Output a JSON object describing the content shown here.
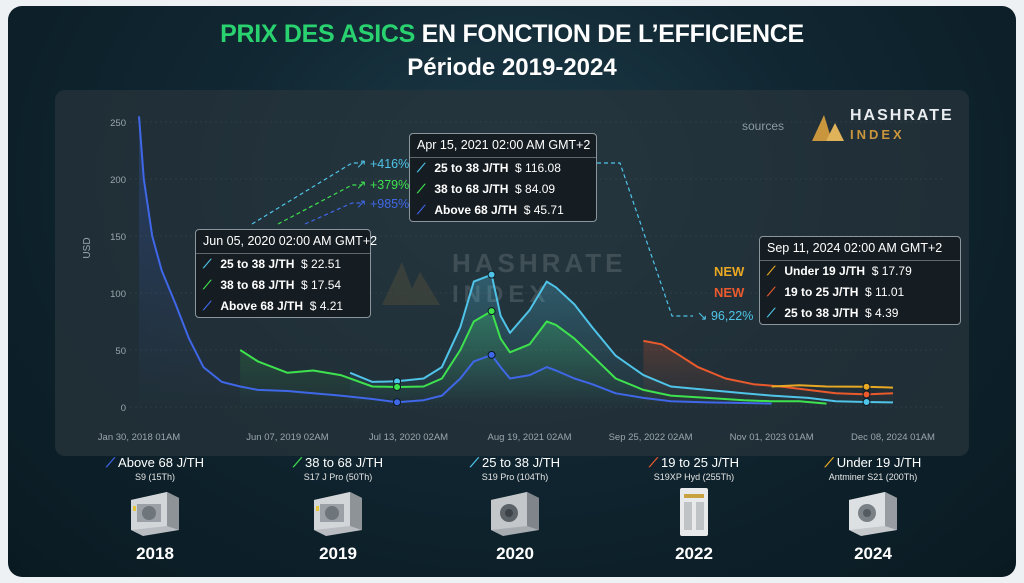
{
  "header": {
    "title_highlight": "PRIX DES ASICS",
    "title_rest": " EN FONCTION DE L’EFFICIENCE",
    "subtitle": "Période 2019-2024"
  },
  "brand": {
    "sources_label": "sources",
    "name_line1": "HASHRATE",
    "name_line2": "INDEX"
  },
  "colors": {
    "above68": "#3f67e8",
    "r38_68": "#3ee24e",
    "r25_38": "#4fc4e8",
    "r19_25": "#ea5a2d",
    "under19": "#e8a823",
    "highlight": "#29d26f"
  },
  "chart_data": {
    "type": "line",
    "ylabel": "USD",
    "ylim": [
      0,
      250
    ],
    "yticks": [
      "0",
      "50",
      "100",
      "150",
      "200",
      "250"
    ],
    "xtick_labels": [
      "Jan 30, 2018 01AM",
      "Jun 07, 2019 02AM",
      "Jul 13, 2020 02AM",
      "Aug 19, 2021 02AM",
      "Sep 25, 2022 02AM",
      "Nov 01, 2023 01AM",
      "Dec 08, 2024 01AM"
    ],
    "xtick_dates": [
      "2018-01-30",
      "2019-06-07",
      "2020-07-13",
      "2021-08-19",
      "2022-09-25",
      "2023-11-01",
      "2024-12-08"
    ],
    "series": [
      {
        "name": "Above 68 J/TH",
        "key": "above68",
        "points": [
          [
            "2018-01-30",
            255
          ],
          [
            "2018-02-15",
            200
          ],
          [
            "2018-03-15",
            150
          ],
          [
            "2018-04-15",
            120
          ],
          [
            "2018-06-01",
            90
          ],
          [
            "2018-07-15",
            60
          ],
          [
            "2018-09-01",
            35
          ],
          [
            "2018-11-01",
            22
          ],
          [
            "2019-01-01",
            18
          ],
          [
            "2019-03-01",
            15
          ],
          [
            "2019-06-07",
            14
          ],
          [
            "2019-09-01",
            12
          ],
          [
            "2019-12-01",
            10
          ],
          [
            "2020-03-15",
            7
          ],
          [
            "2020-06-05",
            4.21
          ],
          [
            "2020-09-01",
            6
          ],
          [
            "2020-11-01",
            10
          ],
          [
            "2021-01-01",
            25
          ],
          [
            "2021-02-15",
            40
          ],
          [
            "2021-04-15",
            45.71
          ],
          [
            "2021-05-15",
            35
          ],
          [
            "2021-06-15",
            25
          ],
          [
            "2021-08-19",
            28
          ],
          [
            "2021-10-15",
            35
          ],
          [
            "2021-11-15",
            32
          ],
          [
            "2022-01-15",
            25
          ],
          [
            "2022-03-15",
            20
          ],
          [
            "2022-06-01",
            12
          ],
          [
            "2022-09-01",
            8
          ],
          [
            "2022-12-01",
            5
          ],
          [
            "2023-04-01",
            4
          ],
          [
            "2023-08-01",
            3.5
          ],
          [
            "2023-11-01",
            3
          ]
        ]
      },
      {
        "name": "38 to 68 J/TH",
        "key": "r38_68",
        "points": [
          [
            "2019-01-01",
            50
          ],
          [
            "2019-03-01",
            40
          ],
          [
            "2019-06-07",
            30
          ],
          [
            "2019-09-01",
            32
          ],
          [
            "2019-12-01",
            28
          ],
          [
            "2020-03-15",
            18
          ],
          [
            "2020-06-05",
            17.54
          ],
          [
            "2020-09-01",
            18
          ],
          [
            "2020-11-01",
            25
          ],
          [
            "2021-01-01",
            50
          ],
          [
            "2021-02-15",
            75
          ],
          [
            "2021-04-15",
            84.09
          ],
          [
            "2021-05-15",
            60
          ],
          [
            "2021-06-15",
            48
          ],
          [
            "2021-08-19",
            55
          ],
          [
            "2021-10-15",
            75
          ],
          [
            "2021-11-15",
            72
          ],
          [
            "2022-01-15",
            60
          ],
          [
            "2022-03-15",
            45
          ],
          [
            "2022-06-01",
            25
          ],
          [
            "2022-09-01",
            15
          ],
          [
            "2022-12-01",
            10
          ],
          [
            "2023-04-01",
            8
          ],
          [
            "2023-08-01",
            6
          ],
          [
            "2023-11-01",
            5
          ],
          [
            "2024-02-01",
            5
          ],
          [
            "2024-05-01",
            3
          ]
        ]
      },
      {
        "name": "25 to 38 J/TH",
        "key": "r25_38",
        "points": [
          [
            "2020-01-01",
            30
          ],
          [
            "2020-03-15",
            22
          ],
          [
            "2020-06-05",
            22.51
          ],
          [
            "2020-09-01",
            25
          ],
          [
            "2020-11-01",
            35
          ],
          [
            "2021-01-01",
            70
          ],
          [
            "2021-02-15",
            110
          ],
          [
            "2021-04-15",
            116.08
          ],
          [
            "2021-05-15",
            80
          ],
          [
            "2021-06-15",
            65
          ],
          [
            "2021-08-19",
            85
          ],
          [
            "2021-10-15",
            110
          ],
          [
            "2021-11-15",
            105
          ],
          [
            "2022-01-15",
            90
          ],
          [
            "2022-03-15",
            70
          ],
          [
            "2022-06-01",
            45
          ],
          [
            "2022-09-01",
            28
          ],
          [
            "2022-12-01",
            18
          ],
          [
            "2023-04-01",
            15
          ],
          [
            "2023-08-01",
            12
          ],
          [
            "2023-11-01",
            10
          ],
          [
            "2024-03-01",
            8
          ],
          [
            "2024-06-01",
            5
          ],
          [
            "2024-09-11",
            4.39
          ],
          [
            "2024-12-08",
            4
          ]
        ]
      },
      {
        "name": "19 to 25 J/TH",
        "key": "r19_25",
        "points": [
          [
            "2022-09-01",
            58
          ],
          [
            "2022-11-01",
            55
          ],
          [
            "2023-01-01",
            45
          ],
          [
            "2023-03-01",
            35
          ],
          [
            "2023-06-01",
            25
          ],
          [
            "2023-09-01",
            20
          ],
          [
            "2023-12-01",
            18
          ],
          [
            "2024-03-01",
            15
          ],
          [
            "2024-06-01",
            12
          ],
          [
            "2024-09-11",
            11.01
          ],
          [
            "2024-12-08",
            12
          ]
        ]
      },
      {
        "name": "Under 19 J/TH",
        "key": "under19",
        "points": [
          [
            "2023-11-01",
            18
          ],
          [
            "2024-02-01",
            19
          ],
          [
            "2024-05-01",
            18
          ],
          [
            "2024-09-11",
            17.79
          ],
          [
            "2024-12-08",
            17
          ]
        ]
      }
    ],
    "annotations": [
      {
        "text": "+416%",
        "series": "r25_38"
      },
      {
        "text": "+379%",
        "series": "r38_68"
      },
      {
        "text": "+985%",
        "series": "above68"
      },
      {
        "text": "96,22%",
        "series": "r25_38"
      }
    ]
  },
  "tooltips": [
    {
      "key": "t2020",
      "header": "Jun 05, 2020 02:00 AM GMT+2",
      "rows": [
        {
          "label": "25 to 38 J/TH",
          "value": "$ 22.51",
          "color": "#4fc4e8"
        },
        {
          "label": "38 to 68 J/TH",
          "value": "$ 17.54",
          "color": "#3ee24e"
        },
        {
          "label": "Above 68 J/TH",
          "value": "$ 4.21",
          "color": "#3f67e8"
        }
      ]
    },
    {
      "key": "t2021",
      "header": "Apr 15, 2021 02:00 AM GMT+2",
      "rows": [
        {
          "label": "25 to 38 J/TH",
          "value": "$ 116.08",
          "color": "#4fc4e8"
        },
        {
          "label": "38 to 68 J/TH",
          "value": "$ 84.09",
          "color": "#3ee24e"
        },
        {
          "label": "Above 68 J/TH",
          "value": "$ 45.71",
          "color": "#3f67e8"
        }
      ]
    },
    {
      "key": "t2024",
      "header": "Sep 11, 2024 02:00 AM GMT+2",
      "rows": [
        {
          "label": "Under 19 J/TH",
          "value": "$ 17.79",
          "color": "#e8a823"
        },
        {
          "label": "19 to 25 J/TH",
          "value": "$ 11.01",
          "color": "#ea5a2d"
        },
        {
          "label": "25 to 38 J/TH",
          "value": "$ 4.39",
          "color": "#4fc4e8"
        }
      ]
    }
  ],
  "new_labels": [
    "NEW",
    "NEW"
  ],
  "legend": [
    {
      "label": "Above 68 J/TH",
      "model": "S9 (15Th)",
      "year": "2018",
      "color": "#3f67e8",
      "icon": "trend-line-icon"
    },
    {
      "label": "38 to 68 J/TH",
      "model": "S17 J Pro (50Th)",
      "year": "2019",
      "color": "#3ee24e",
      "icon": "trend-line-icon"
    },
    {
      "label": "25 to 38 J/TH",
      "model": "S19 Pro (104Th)",
      "year": "2020",
      "color": "#4fc4e8",
      "icon": "trend-line-icon"
    },
    {
      "label": "19 to 25 J/TH",
      "model": "S19XP Hyd (255Th)",
      "year": "2022",
      "color": "#ea5a2d",
      "icon": "trend-line-icon"
    },
    {
      "label": "Under 19 J/TH",
      "model": "Antminer S21 (200Th)",
      "year": "2024",
      "color": "#e8a823",
      "icon": "trend-line-icon"
    }
  ]
}
